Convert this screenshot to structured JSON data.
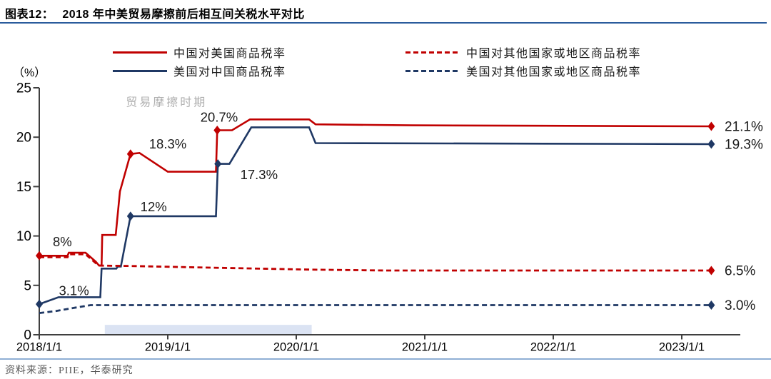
{
  "header": {
    "tag": "图表12：",
    "title": "2018 年中美贸易摩擦前后相互间关税水平对比"
  },
  "y_axis_unit": "（%）",
  "source": "资料来源：PIIE，华泰研究",
  "legend": [
    {
      "id": "china-on-us",
      "label": "中国对美国商品税率",
      "color": "#c00000",
      "style": "solid"
    },
    {
      "id": "us-on-china",
      "label": "美国对中国商品税率",
      "color": "#1f3864",
      "style": "solid"
    },
    {
      "id": "china-on-row",
      "label": "中国对其他国家或地区商品税率",
      "color": "#c00000",
      "style": "dashed"
    },
    {
      "id": "us-on-row",
      "label": "美国对其他国家或地区商品税率",
      "color": "#1f3864",
      "style": "dashed"
    }
  ],
  "colors": {
    "red": "#c00000",
    "navy": "#1f3864",
    "band": "#dbe3f3",
    "axis": "#3f3f3f",
    "muted_label": "#b0b0b0",
    "title_rule": "#2a5b9c",
    "footer_rule": "#8fafd4",
    "source_text": "#595959"
  },
  "chart_data": {
    "type": "line",
    "title": "2018 年中美贸易摩擦前后相互间关税水平对比",
    "ylabel": "（%）",
    "ylim": [
      0,
      25
    ],
    "yticks": [
      0,
      5,
      10,
      15,
      20,
      25
    ],
    "x_unit": "years since 2018/1/1",
    "xticks": [
      {
        "t": 0,
        "label": "2018/1/1"
      },
      {
        "t": 1,
        "label": "2019/1/1"
      },
      {
        "t": 2,
        "label": "2020/1/1"
      },
      {
        "t": 3,
        "label": "2021/1/1"
      },
      {
        "t": 4,
        "label": "2022/1/1"
      },
      {
        "t": 5,
        "label": "2023/1/1"
      }
    ],
    "band": {
      "t0": 0.51,
      "t1": 2.12,
      "v0": 0,
      "v1": 1.0,
      "label": "贸易摩擦时期"
    },
    "series": [
      {
        "id": "china-on-us",
        "name": "中国对美国商品税率",
        "color": "#c00000",
        "dashed": false,
        "points": [
          [
            0,
            8.0
          ],
          [
            0.22,
            8.0
          ],
          [
            0.23,
            8.3
          ],
          [
            0.36,
            8.3
          ],
          [
            0.44,
            7.4
          ],
          [
            0.465,
            7.0
          ],
          [
            0.485,
            7.0
          ],
          [
            0.49,
            10.1
          ],
          [
            0.595,
            10.1
          ],
          [
            0.628,
            14.5
          ],
          [
            0.71,
            18.3
          ],
          [
            0.78,
            18.4
          ],
          [
            1.0,
            16.5
          ],
          [
            1.375,
            16.5
          ],
          [
            1.385,
            20.7
          ],
          [
            1.5,
            20.7
          ],
          [
            1.64,
            21.8
          ],
          [
            2.1,
            21.8
          ],
          [
            2.15,
            21.3
          ],
          [
            2.9,
            21.2
          ],
          [
            5.23,
            21.1
          ]
        ],
        "markers": [
          [
            0,
            8.0
          ],
          [
            0.71,
            18.3
          ],
          [
            1.385,
            20.7
          ],
          [
            5.23,
            21.1
          ]
        ]
      },
      {
        "id": "us-on-china",
        "name": "美国对中国商品税率",
        "color": "#1f3864",
        "dashed": false,
        "points": [
          [
            0,
            3.1
          ],
          [
            0.15,
            3.8
          ],
          [
            0.475,
            3.8
          ],
          [
            0.485,
            6.7
          ],
          [
            0.6,
            6.7
          ],
          [
            0.61,
            6.9
          ],
          [
            0.635,
            6.9
          ],
          [
            0.71,
            12.0
          ],
          [
            1.375,
            12.0
          ],
          [
            1.39,
            17.3
          ],
          [
            1.48,
            17.3
          ],
          [
            1.65,
            21.0
          ],
          [
            2.1,
            21.0
          ],
          [
            2.15,
            19.4
          ],
          [
            5.23,
            19.3
          ]
        ],
        "markers": [
          [
            0,
            3.1
          ],
          [
            0.71,
            12.0
          ],
          [
            1.39,
            17.3
          ],
          [
            5.23,
            19.3
          ]
        ]
      },
      {
        "id": "china-on-row",
        "name": "中国对其他国家或地区商品税率",
        "color": "#c00000",
        "dashed": true,
        "points": [
          [
            0,
            7.85
          ],
          [
            0.22,
            7.85
          ],
          [
            0.23,
            8.15
          ],
          [
            0.36,
            8.15
          ],
          [
            0.44,
            7.25
          ],
          [
            0.47,
            7.0
          ],
          [
            0.75,
            6.95
          ],
          [
            1.3,
            6.8
          ],
          [
            2.1,
            6.6
          ],
          [
            2.7,
            6.5
          ],
          [
            5.23,
            6.5
          ]
        ],
        "markers": [
          [
            5.23,
            6.5
          ]
        ]
      },
      {
        "id": "us-on-row",
        "name": "美国对其他国家或地区商品税率",
        "color": "#1f3864",
        "dashed": true,
        "points": [
          [
            0,
            2.2
          ],
          [
            0.13,
            2.4
          ],
          [
            0.26,
            2.7
          ],
          [
            0.4,
            3.0
          ],
          [
            5.23,
            3.0
          ]
        ],
        "markers": [
          [
            5.23,
            3.0
          ]
        ]
      }
    ],
    "annotations": [
      {
        "text": "8%",
        "t": 0.18,
        "v": 9.4
      },
      {
        "text": "3.1%",
        "t": 0.27,
        "v": 4.45
      },
      {
        "text": "18.3%",
        "t": 1.0,
        "v": 19.3
      },
      {
        "text": "12%",
        "t": 0.89,
        "v": 12.95
      },
      {
        "text": "20.7%",
        "t": 1.4,
        "v": 22.0
      },
      {
        "text": "17.3%",
        "t": 1.71,
        "v": 16.2
      },
      {
        "text": "贸易摩擦时期",
        "t": 0.99,
        "v": 23.6,
        "muted": true
      }
    ],
    "end_labels": [
      {
        "text": "21.1%",
        "v": 21.1
      },
      {
        "text": "19.3%",
        "v": 19.3
      },
      {
        "text": "6.5%",
        "v": 6.5
      },
      {
        "text": "3.0%",
        "v": 3.0
      }
    ]
  }
}
